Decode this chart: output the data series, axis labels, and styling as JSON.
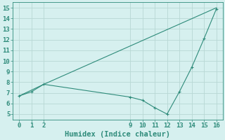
{
  "line1_x": [
    0,
    2,
    16
  ],
  "line1_y": [
    6.7,
    7.8,
    15.0
  ],
  "line2_x": [
    0,
    1,
    2,
    9,
    10,
    11,
    12,
    13,
    14,
    15,
    16
  ],
  "line2_y": [
    6.7,
    7.1,
    7.8,
    6.6,
    6.3,
    5.6,
    5.0,
    7.1,
    9.4,
    12.1,
    14.9
  ],
  "line_color": "#2e8b7a",
  "bg_color": "#d6f0ef",
  "grid_color": "#b8d8d4",
  "xlabel": "Humidex (Indice chaleur)",
  "ylim": [
    4.5,
    15.5
  ],
  "xlim": [
    -0.5,
    16.5
  ],
  "yticks": [
    5,
    6,
    7,
    8,
    9,
    10,
    11,
    12,
    13,
    14,
    15
  ],
  "xticks": [
    0,
    1,
    2,
    9,
    10,
    11,
    12,
    13,
    14,
    15,
    16
  ],
  "tick_color": "#2e8b7a",
  "font_size": 6.5,
  "xlabel_fontsize": 7.5
}
